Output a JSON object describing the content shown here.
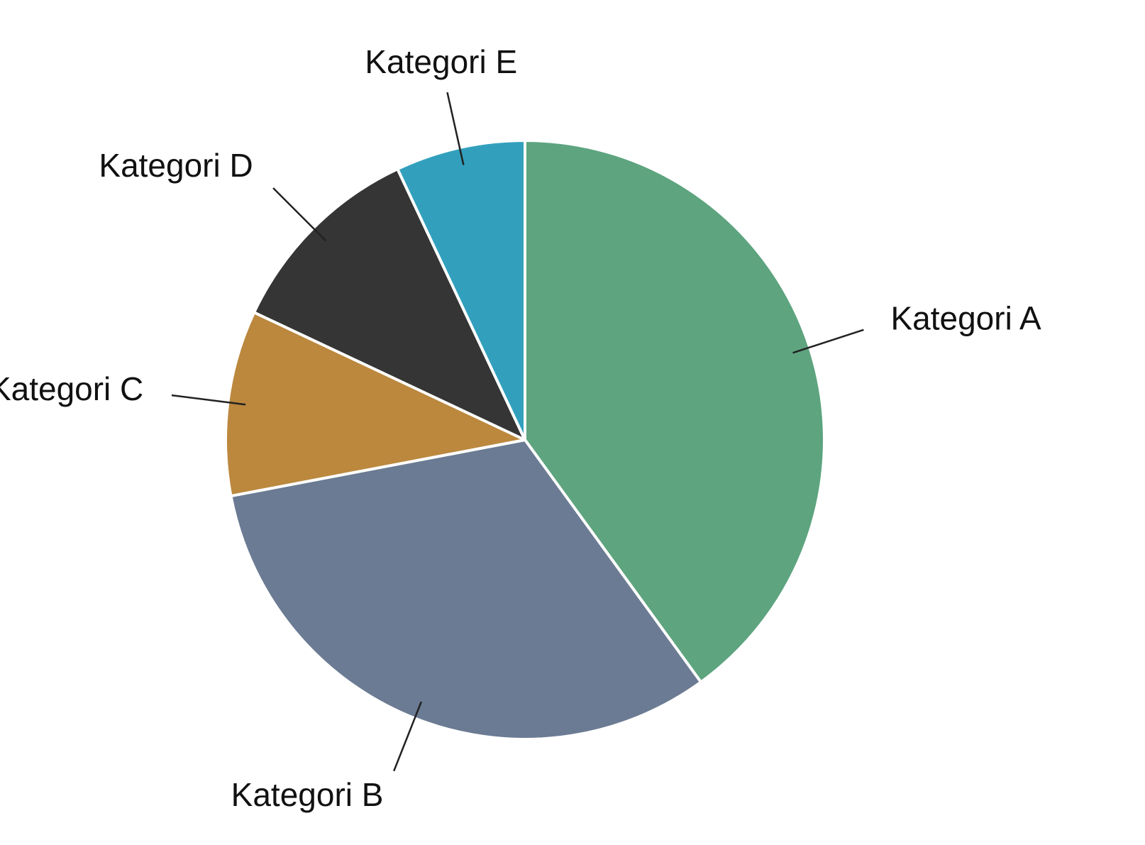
{
  "chart_data": {
    "type": "pie",
    "title": "",
    "categories": [
      "Kategori A",
      "Kategori B",
      "Kategori C",
      "Kategori D",
      "Kategori E"
    ],
    "values": [
      40,
      32,
      10,
      11,
      7
    ],
    "colors": [
      "#5da47f",
      "#6b7b93",
      "#bb883e",
      "#353535",
      "#32a0bd"
    ],
    "start_angle_deg": 0,
    "direction": "clockwise",
    "legend": "none",
    "labels_outside_with_leader_lines": true
  }
}
